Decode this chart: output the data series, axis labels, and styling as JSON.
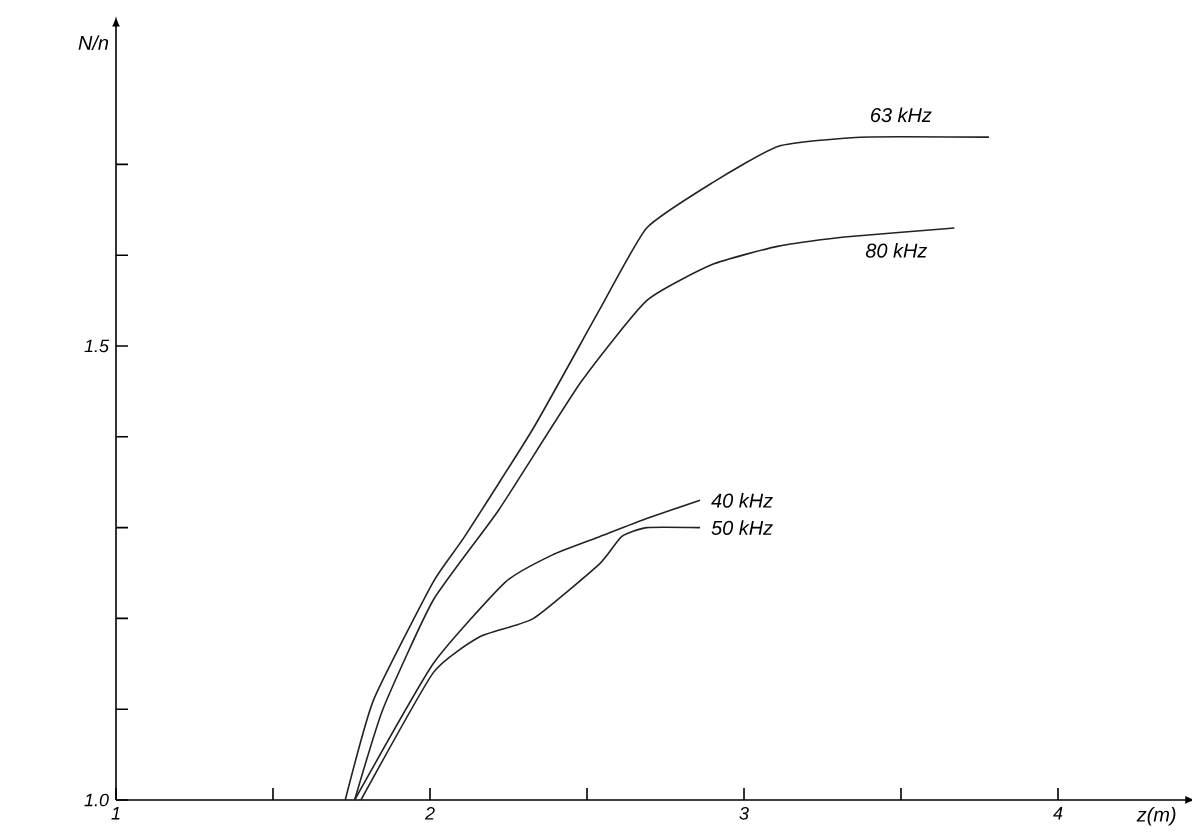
{
  "chart_data": {
    "type": "line",
    "xlabel": "z(m)",
    "ylabel": "N/n",
    "xlim": [
      1,
      4.4
    ],
    "ylim": [
      1.0,
      1.85
    ],
    "xticks": [
      1,
      {
        "value": 1.5,
        "label": null
      },
      2,
      {
        "value": 2.5,
        "label": null
      },
      3,
      {
        "value": 3.5,
        "label": null
      },
      4
    ],
    "yticks": [
      {
        "value": 1.0,
        "label": "1.0"
      },
      {
        "value": 1.1,
        "label": null
      },
      {
        "value": 1.2,
        "label": null
      },
      {
        "value": 1.3,
        "label": null
      },
      {
        "value": 1.4,
        "label": null
      },
      1.5,
      {
        "value": 1.6,
        "label": null
      },
      {
        "value": 1.7,
        "label": null
      }
    ],
    "grid": false,
    "legend": false,
    "marker": "none",
    "line_style": "solid",
    "series": [
      {
        "name": "63 kHz",
        "color": "#222222",
        "x": [
          1.73,
          1.82,
          2.01,
          2.11,
          2.33,
          2.54,
          2.69,
          2.9,
          3.11,
          3.37,
          3.78
        ],
        "values": [
          1.0,
          1.11,
          1.24,
          1.29,
          1.41,
          1.54,
          1.63,
          1.68,
          1.72,
          1.73,
          1.73
        ]
      },
      {
        "name": "80 kHz",
        "color": "#222222",
        "x": [
          1.76,
          1.85,
          2.01,
          2.22,
          2.48,
          2.69,
          2.9,
          3.11,
          3.32,
          3.67
        ],
        "values": [
          1.0,
          1.1,
          1.22,
          1.32,
          1.46,
          1.55,
          1.59,
          1.61,
          1.62,
          1.63
        ]
      },
      {
        "name": "40 kHz",
        "color": "#222222",
        "x": [
          1.76,
          2.01,
          2.24,
          2.39,
          2.54,
          2.69,
          2.86
        ],
        "values": [
          1.0,
          1.15,
          1.24,
          1.27,
          1.29,
          1.31,
          1.33
        ]
      },
      {
        "name": "50 kHz",
        "color": "#222222",
        "x": [
          1.78,
          2.01,
          2.16,
          2.33,
          2.54,
          2.61,
          2.69,
          2.86
        ],
        "values": [
          1.0,
          1.14,
          1.18,
          1.2,
          1.26,
          1.29,
          1.3,
          1.3
        ]
      }
    ]
  }
}
